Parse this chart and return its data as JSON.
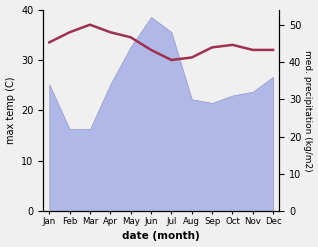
{
  "months": [
    "Jan",
    "Feb",
    "Mar",
    "Apr",
    "May",
    "Jun",
    "Jul",
    "Aug",
    "Sep",
    "Oct",
    "Nov",
    "Dec"
  ],
  "month_indices": [
    0,
    1,
    2,
    3,
    4,
    5,
    6,
    7,
    8,
    9,
    10,
    11
  ],
  "temperature": [
    33.5,
    35.5,
    37.0,
    35.5,
    34.5,
    32.0,
    30.0,
    30.5,
    32.5,
    33.0,
    32.0,
    32.0
  ],
  "precipitation": [
    34,
    22,
    22,
    34,
    44,
    52,
    48,
    30,
    29,
    31,
    32,
    36
  ],
  "temp_color": "#a03050",
  "precip_color": "#b0b8e8",
  "precip_edge_color": "#9098cc",
  "temp_ylim": [
    0,
    40
  ],
  "precip_ylim": [
    0,
    54
  ],
  "temp_yticks": [
    0,
    10,
    20,
    30,
    40
  ],
  "precip_yticks": [
    0,
    10,
    20,
    30,
    40,
    50
  ],
  "xlabel": "date (month)",
  "ylabel_left": "max temp (C)",
  "ylabel_right": "med. precipitation (kg/m2)",
  "background_color": "#f0f0f0",
  "plot_bg_color": "#ffffff",
  "temp_linewidth": 1.8
}
